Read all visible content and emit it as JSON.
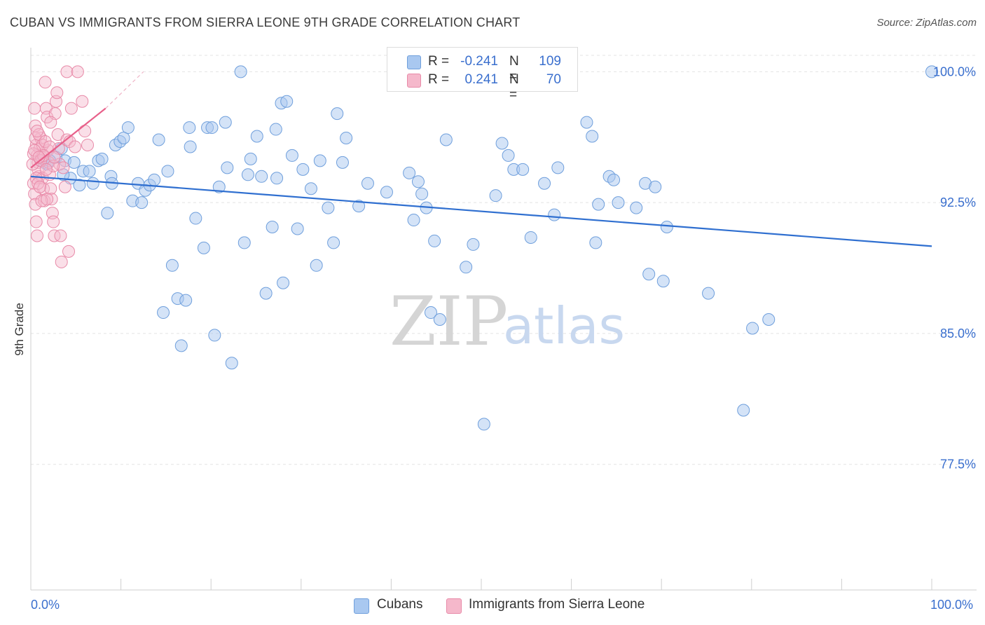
{
  "title": "CUBAN VS IMMIGRANTS FROM SIERRA LEONE 9TH GRADE CORRELATION CHART",
  "source": "Source: ZipAtlas.com",
  "watermark": {
    "zip": "ZIP",
    "atlas": "atlas"
  },
  "legend": {
    "series1": {
      "r_label": "R = ",
      "r_value": "-0.241",
      "n_label": "N = ",
      "n_value": "109",
      "color": "#a9c8f0"
    },
    "series2": {
      "r_label": "R = ",
      "r_value": "0.241",
      "n_label": "N = ",
      "n_value": "70",
      "color": "#f5b8cb"
    }
  },
  "bottom_legend": {
    "series1": "Cubans",
    "series2": "Immigrants from Sierra Leone"
  },
  "colors": {
    "blue_fill": "#a9c8f0",
    "blue_stroke": "#6f9fdc",
    "blue_line": "#2f6fd0",
    "pink_fill": "#f5b8cb",
    "pink_stroke": "#e88aa8",
    "pink_line": "#e8608a",
    "tick_text": "#3a6fce",
    "grid": "#e3e3e3"
  },
  "chart_data": {
    "type": "scatter",
    "title": "CUBAN VS IMMIGRANTS FROM SIERRA LEONE 9TH GRADE CORRELATION CHART",
    "xlabel": "",
    "ylabel": "9th Grade",
    "xlim": [
      0,
      100
    ],
    "ylim": [
      70.3,
      101.3
    ],
    "x_tick_labels": [
      "0.0%",
      "100.0%"
    ],
    "y_ticks": [
      77.5,
      85.0,
      92.5,
      100.0
    ],
    "y_tick_labels": [
      "77.5%",
      "85.0%",
      "92.5%",
      "100.0%"
    ],
    "grid": true,
    "series": [
      {
        "name": "Cubans",
        "r": -0.241,
        "n": 109,
        "trend": {
          "x": [
            0,
            100
          ],
          "y": [
            94.0,
            90.0
          ]
        },
        "points": [
          [
            1.2,
            94.9
          ],
          [
            1.5,
            94.8
          ],
          [
            1.8,
            94.7
          ],
          [
            2.8,
            95.1
          ],
          [
            3.4,
            95.6
          ],
          [
            3.8,
            94.9
          ],
          [
            4.4,
            93.9
          ],
          [
            4.8,
            94.8
          ],
          [
            5.4,
            93.5
          ],
          [
            5.8,
            94.3
          ],
          [
            6.5,
            94.3
          ],
          [
            6.9,
            93.6
          ],
          [
            7.5,
            94.9
          ],
          [
            7.9,
            95.0
          ],
          [
            8.5,
            91.9
          ],
          [
            8.9,
            94.0
          ],
          [
            9.4,
            95.8
          ],
          [
            9.9,
            96.0
          ],
          [
            10.3,
            96.2
          ],
          [
            10.8,
            96.8
          ],
          [
            11.3,
            92.6
          ],
          [
            11.9,
            93.6
          ],
          [
            12.3,
            92.5
          ],
          [
            12.7,
            93.2
          ],
          [
            13.2,
            93.5
          ],
          [
            13.7,
            93.8
          ],
          [
            14.2,
            96.1
          ],
          [
            14.7,
            86.2
          ],
          [
            15.2,
            94.3
          ],
          [
            15.7,
            88.9
          ],
          [
            16.3,
            87.0
          ],
          [
            16.7,
            84.3
          ],
          [
            17.2,
            86.9
          ],
          [
            17.7,
            95.7
          ],
          [
            18.3,
            91.6
          ],
          [
            19.2,
            89.9
          ],
          [
            19.6,
            96.8
          ],
          [
            20.1,
            96.8
          ],
          [
            20.4,
            84.9
          ],
          [
            20.9,
            93.4
          ],
          [
            21.6,
            97.1
          ],
          [
            21.8,
            94.5
          ],
          [
            22.3,
            83.3
          ],
          [
            23.3,
            100.0
          ],
          [
            23.7,
            90.2
          ],
          [
            24.1,
            94.1
          ],
          [
            24.4,
            95.0
          ],
          [
            25.1,
            96.3
          ],
          [
            25.6,
            94.0
          ],
          [
            26.1,
            87.3
          ],
          [
            26.8,
            91.1
          ],
          [
            27.2,
            96.7
          ],
          [
            27.8,
            98.2
          ],
          [
            28.0,
            87.9
          ],
          [
            28.4,
            98.3
          ],
          [
            29.0,
            95.2
          ],
          [
            29.6,
            91.0
          ],
          [
            30.2,
            94.4
          ],
          [
            31.1,
            93.3
          ],
          [
            31.7,
            88.9
          ],
          [
            32.1,
            94.9
          ],
          [
            33.0,
            92.2
          ],
          [
            33.6,
            90.2
          ],
          [
            34.0,
            97.6
          ],
          [
            34.6,
            94.8
          ],
          [
            35.0,
            96.2
          ],
          [
            36.4,
            92.3
          ],
          [
            37.4,
            93.6
          ],
          [
            39.5,
            93.1
          ],
          [
            42.0,
            94.2
          ],
          [
            42.5,
            91.5
          ],
          [
            43.0,
            93.7
          ],
          [
            43.4,
            93.0
          ],
          [
            43.9,
            92.2
          ],
          [
            44.4,
            86.2
          ],
          [
            44.8,
            90.3
          ],
          [
            45.4,
            85.8
          ],
          [
            46.1,
            96.1
          ],
          [
            48.3,
            88.8
          ],
          [
            49.1,
            90.1
          ],
          [
            50.3,
            79.8
          ],
          [
            51.6,
            92.9
          ],
          [
            52.3,
            95.9
          ],
          [
            53.0,
            95.2
          ],
          [
            53.6,
            94.4
          ],
          [
            54.6,
            94.4
          ],
          [
            55.5,
            90.5
          ],
          [
            57.0,
            93.6
          ],
          [
            58.5,
            94.5
          ],
          [
            61.7,
            97.1
          ],
          [
            62.3,
            96.3
          ],
          [
            62.7,
            90.2
          ],
          [
            63.0,
            92.4
          ],
          [
            64.2,
            94.0
          ],
          [
            64.7,
            93.8
          ],
          [
            65.2,
            92.5
          ],
          [
            67.2,
            92.2
          ],
          [
            68.2,
            93.6
          ],
          [
            68.6,
            88.4
          ],
          [
            69.3,
            93.4
          ],
          [
            70.2,
            88.0
          ],
          [
            70.6,
            91.1
          ],
          [
            75.2,
            87.3
          ],
          [
            79.1,
            80.6
          ],
          [
            80.1,
            85.3
          ],
          [
            81.9,
            85.8
          ],
          [
            100.0,
            100.0
          ],
          [
            9.0,
            93.6
          ],
          [
            17.6,
            96.8
          ],
          [
            3.6,
            94.1
          ],
          [
            27.3,
            93.9
          ],
          [
            58.1,
            91.8
          ],
          [
            2.1,
            94.9
          ]
        ]
      },
      {
        "name": "Immigrants from Sierra Leone",
        "r": 0.241,
        "n": 70,
        "trend": {
          "x": [
            0,
            8.3
          ],
          "y": [
            94.5,
            97.9
          ]
        },
        "trend_dashed": {
          "x": [
            8.3,
            12.5
          ],
          "y": [
            97.9,
            100.0
          ]
        },
        "points": [
          [
            0.4,
            97.9
          ],
          [
            0.5,
            96.9
          ],
          [
            0.6,
            95.8
          ],
          [
            0.7,
            95.2
          ],
          [
            0.8,
            94.8
          ],
          [
            0.9,
            94.0
          ],
          [
            0.3,
            93.6
          ],
          [
            0.4,
            93.0
          ],
          [
            0.5,
            92.4
          ],
          [
            0.6,
            91.4
          ],
          [
            0.7,
            90.6
          ],
          [
            0.8,
            94.4
          ],
          [
            1.0,
            95.6
          ],
          [
            1.1,
            96.2
          ],
          [
            1.2,
            95.1
          ],
          [
            1.3,
            93.9
          ],
          [
            1.4,
            93.3
          ],
          [
            1.5,
            92.6
          ],
          [
            1.6,
            99.4
          ],
          [
            1.7,
            97.9
          ],
          [
            1.8,
            97.4
          ],
          [
            1.9,
            95.5
          ],
          [
            2.0,
            94.8
          ],
          [
            2.1,
            94.1
          ],
          [
            2.2,
            93.3
          ],
          [
            2.3,
            92.7
          ],
          [
            2.4,
            91.9
          ],
          [
            2.5,
            91.4
          ],
          [
            2.6,
            90.6
          ],
          [
            2.7,
            97.6
          ],
          [
            2.8,
            98.3
          ],
          [
            2.9,
            98.8
          ],
          [
            3.0,
            96.4
          ],
          [
            3.1,
            95.6
          ],
          [
            3.2,
            94.7
          ],
          [
            3.3,
            90.6
          ],
          [
            3.4,
            89.1
          ],
          [
            3.6,
            94.5
          ],
          [
            3.8,
            93.4
          ],
          [
            4.0,
            96.1
          ],
          [
            4.2,
            89.7
          ],
          [
            4.0,
            100.0
          ],
          [
            4.3,
            96.0
          ],
          [
            4.5,
            97.9
          ],
          [
            4.9,
            95.7
          ],
          [
            5.2,
            100.0
          ],
          [
            5.7,
            98.3
          ],
          [
            6.0,
            96.6
          ],
          [
            6.3,
            95.8
          ],
          [
            0.2,
            94.7
          ],
          [
            0.3,
            95.3
          ],
          [
            0.5,
            96.2
          ],
          [
            0.9,
            96.4
          ],
          [
            1.3,
            95.8
          ],
          [
            1.6,
            96.0
          ],
          [
            2.1,
            95.7
          ],
          [
            1.1,
            94.9
          ],
          [
            1.4,
            95.2
          ],
          [
            0.6,
            93.9
          ],
          [
            0.8,
            93.6
          ],
          [
            1.2,
            92.6
          ],
          [
            1.8,
            92.7
          ],
          [
            2.2,
            97.1
          ],
          [
            2.5,
            94.6
          ],
          [
            0.4,
            95.5
          ],
          [
            0.9,
            95.1
          ],
          [
            1.7,
            94.4
          ],
          [
            0.7,
            96.6
          ],
          [
            2.6,
            95.1
          ],
          [
            1.0,
            93.4
          ]
        ]
      }
    ]
  }
}
